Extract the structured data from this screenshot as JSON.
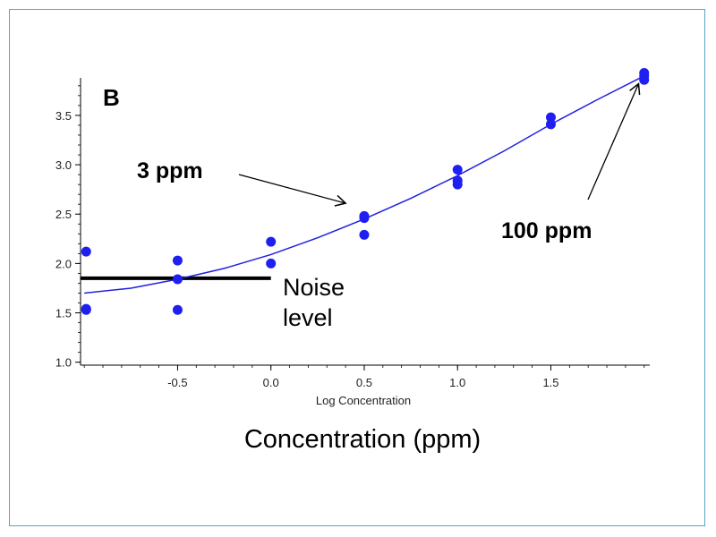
{
  "chart_data": {
    "type": "scatter",
    "panel_label": "B",
    "xlabel": "Log Concentration",
    "caption": "Concentration (ppm)",
    "ylabel": "",
    "xlim": [
      -1.02,
      2.03
    ],
    "ylim": [
      0.97,
      3.88
    ],
    "x_ticks": [
      -0.5,
      0.0,
      0.5,
      1.0,
      1.5
    ],
    "x_tick_labels": [
      "-0.5",
      "0.0",
      "0.5",
      "1.0",
      "1.5"
    ],
    "y_ticks": [
      1.0,
      1.5,
      2.0,
      2.5,
      3.0,
      3.5
    ],
    "y_tick_labels": [
      "1.0",
      "1.5",
      "2.0",
      "2.5",
      "3.0",
      "3.5"
    ],
    "points": [
      {
        "x": -0.99,
        "y": 2.12
      },
      {
        "x": -0.99,
        "y": 1.53
      },
      {
        "x": -0.99,
        "y": 1.54
      },
      {
        "x": -0.5,
        "y": 2.03
      },
      {
        "x": -0.5,
        "y": 1.84
      },
      {
        "x": -0.5,
        "y": 1.53
      },
      {
        "x": 0.0,
        "y": 2.22
      },
      {
        "x": 0.0,
        "y": 2.0
      },
      {
        "x": 0.5,
        "y": 2.48
      },
      {
        "x": 0.5,
        "y": 2.46
      },
      {
        "x": 0.5,
        "y": 2.29
      },
      {
        "x": 1.0,
        "y": 2.95
      },
      {
        "x": 1.0,
        "y": 2.84
      },
      {
        "x": 1.0,
        "y": 2.8
      },
      {
        "x": 1.5,
        "y": 3.48
      },
      {
        "x": 1.5,
        "y": 3.41
      },
      {
        "x": 2.0,
        "y": 3.93
      },
      {
        "x": 2.0,
        "y": 3.9
      },
      {
        "x": 2.0,
        "y": 3.86
      }
    ],
    "fit_curve": [
      {
        "x": -1.0,
        "y": 1.7
      },
      {
        "x": -0.75,
        "y": 1.75
      },
      {
        "x": -0.5,
        "y": 1.84
      },
      {
        "x": -0.25,
        "y": 1.95
      },
      {
        "x": 0.0,
        "y": 2.09
      },
      {
        "x": 0.25,
        "y": 2.26
      },
      {
        "x": 0.5,
        "y": 2.45
      },
      {
        "x": 0.75,
        "y": 2.66
      },
      {
        "x": 1.0,
        "y": 2.89
      },
      {
        "x": 1.25,
        "y": 3.14
      },
      {
        "x": 1.5,
        "y": 3.41
      },
      {
        "x": 1.75,
        "y": 3.66
      },
      {
        "x": 2.0,
        "y": 3.9
      }
    ],
    "noise_level": {
      "y": 1.85,
      "x_from": -1.02,
      "x_to": 0.0,
      "label_line1": "Noise",
      "label_line2": "level"
    },
    "annotations": [
      {
        "text": "3 ppm",
        "target": {
          "x": 0.4,
          "y": 2.61
        }
      },
      {
        "text": "100 ppm",
        "target": {
          "x": 1.97,
          "y": 3.82
        }
      }
    ],
    "colors": {
      "points": "#1f1ff0",
      "fit": "#2020e0",
      "noise": "#000000",
      "frame": "#5aa5c8"
    }
  }
}
